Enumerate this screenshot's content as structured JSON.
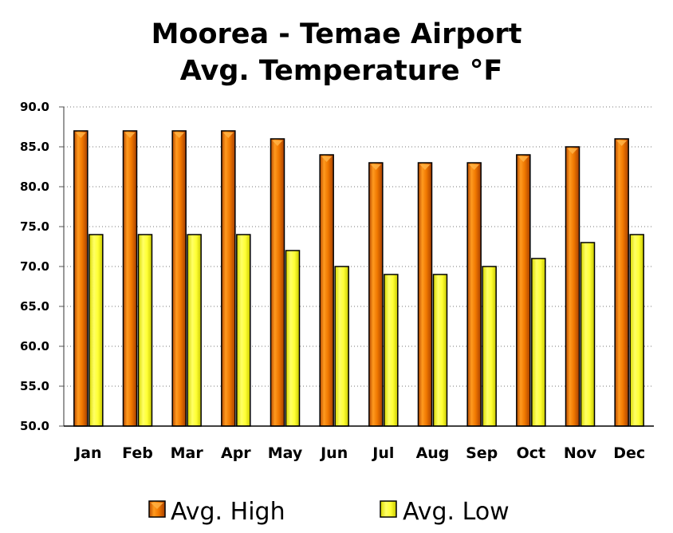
{
  "chart_data": {
    "type": "bar",
    "title_line1": "Moorea - Temae Airport",
    "title_line2": "Avg. Temperature °F",
    "xlabel": "",
    "ylabel": "",
    "ylim": [
      50,
      90
    ],
    "yticks": [
      "50.0",
      "55.0",
      "60.0",
      "65.0",
      "70.0",
      "75.0",
      "80.0",
      "85.0",
      "90.0"
    ],
    "grid": true,
    "legend_position": "bottom",
    "categories": [
      "Jan",
      "Feb",
      "Mar",
      "Apr",
      "May",
      "Jun",
      "Jul",
      "Aug",
      "Sep",
      "Oct",
      "Nov",
      "Dec"
    ],
    "series": [
      {
        "name": "Avg. High",
        "color": "#f07800",
        "values": [
          87,
          87,
          87,
          87,
          86,
          84,
          83,
          83,
          83,
          84,
          85,
          86
        ]
      },
      {
        "name": "Avg. Low",
        "color": "#ffff33",
        "values": [
          74,
          74,
          74,
          74,
          72,
          70,
          69,
          69,
          70,
          71,
          73,
          74
        ]
      }
    ]
  }
}
